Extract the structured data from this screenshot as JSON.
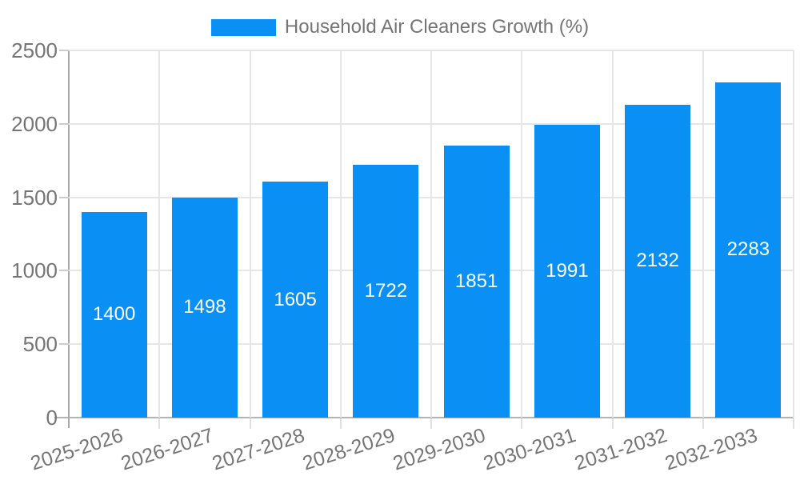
{
  "legend": {
    "label": "Household Air Cleaners Growth (%)"
  },
  "chart_data": {
    "type": "bar",
    "title": "",
    "series_name": "Household Air Cleaners Growth (%)",
    "categories": [
      "2025-2026",
      "2026-2027",
      "2027-2028",
      "2028-2029",
      "2029-2030",
      "2030-2031",
      "2031-2032",
      "2032-2033"
    ],
    "values": [
      1400,
      1498,
      1605,
      1722,
      1851,
      1991,
      2132,
      2283
    ],
    "xlabel": "",
    "ylabel": "",
    "ylim": [
      0,
      2500
    ],
    "yticks": [
      0,
      500,
      1000,
      1500,
      2000,
      2500
    ],
    "grid": true,
    "legend_position": "top",
    "bar_color": "#0a90f5",
    "value_label_color": "#ffffff",
    "axis_text_color": "#757575"
  }
}
